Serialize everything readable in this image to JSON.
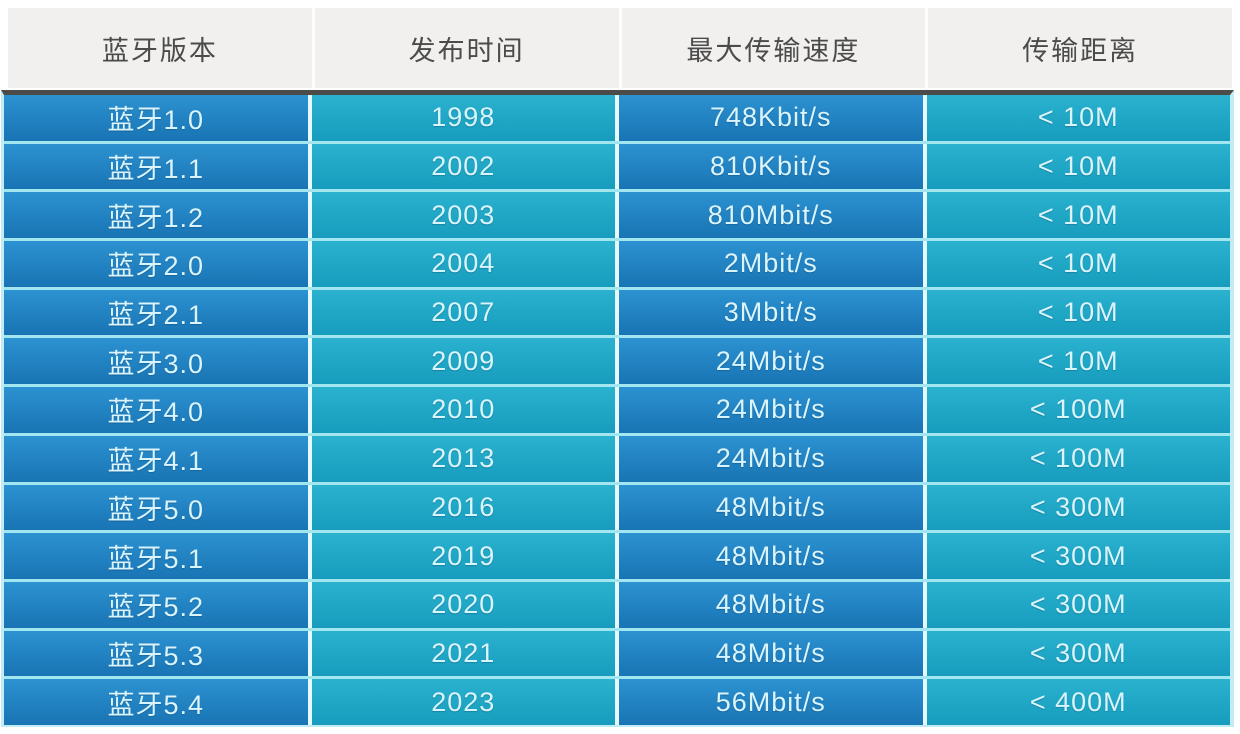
{
  "chart_data": {
    "type": "table",
    "columns": [
      "蓝牙版本",
      "发布时间",
      "最大传输速度",
      "传输距离"
    ],
    "rows": [
      [
        "蓝牙1.0",
        "1998",
        "748Kbit/s",
        "< 10M"
      ],
      [
        "蓝牙1.1",
        "2002",
        "810Kbit/s",
        "< 10M"
      ],
      [
        "蓝牙1.2",
        "2003",
        "810Mbit/s",
        "< 10M"
      ],
      [
        "蓝牙2.0",
        "2004",
        "2Mbit/s",
        "< 10M"
      ],
      [
        "蓝牙2.1",
        "2007",
        "3Mbit/s",
        "< 10M"
      ],
      [
        "蓝牙3.0",
        "2009",
        "24Mbit/s",
        "< 10M"
      ],
      [
        "蓝牙4.0",
        "2010",
        "24Mbit/s",
        "< 100M"
      ],
      [
        "蓝牙4.1",
        "2013",
        "24Mbit/s",
        "< 100M"
      ],
      [
        "蓝牙5.0",
        "2016",
        "48Mbit/s",
        "< 300M"
      ],
      [
        "蓝牙5.1",
        "2019",
        "48Mbit/s",
        "< 300M"
      ],
      [
        "蓝牙5.2",
        "2020",
        "48Mbit/s",
        "< 300M"
      ],
      [
        "蓝牙5.3",
        "2021",
        "48Mbit/s",
        "< 300M"
      ],
      [
        "蓝牙5.4",
        "2023",
        "56Mbit/s",
        "< 400M"
      ]
    ]
  },
  "colors": {
    "header-bg": "#f1f0ee",
    "header-text": "#4b4b4b",
    "header-sep": "#fdfdfc",
    "top-border": "#4b4b49",
    "blue-hi": "#2c92d1",
    "blue-lo": "#1974b4",
    "teal-hi": "#2ab2cf",
    "teal-lo": "#179cbd",
    "cell-text": "#daf4fb",
    "h-divider": "#a2e6f0",
    "v-divider": "#e6fafd",
    "edge": "#c2ecf4"
  }
}
